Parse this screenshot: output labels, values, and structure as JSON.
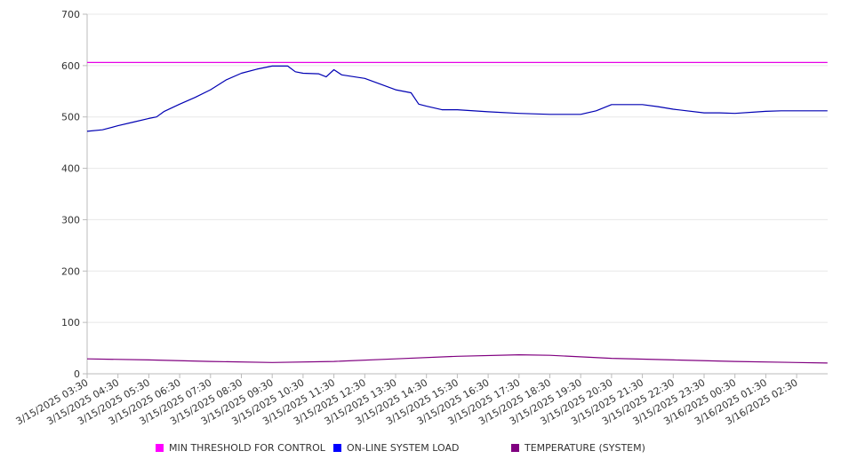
{
  "chart_data": {
    "type": "line",
    "ylim": [
      0,
      700
    ],
    "yticks": [
      "0",
      "100",
      "200",
      "300",
      "400",
      "500",
      "600",
      "700"
    ],
    "grid": true,
    "legend_position": "bottom",
    "x_labels": [
      "3/15/2025 03:30",
      "3/15/2025 04:30",
      "3/15/2025 05:30",
      "3/15/2025 06:30",
      "3/15/2025 07:30",
      "3/15/2025 08:30",
      "3/15/2025 09:30",
      "3/15/2025 10:30",
      "3/15/2025 11:30",
      "3/15/2025 12:30",
      "3/15/2025 13:30",
      "3/15/2025 14:30",
      "3/15/2025 15:30",
      "3/15/2025 16:30",
      "3/15/2025 17:30",
      "3/15/2025 18:30",
      "3/15/2025 19:30",
      "3/15/2025 20:30",
      "3/15/2025 21:30",
      "3/15/2025 22:30",
      "3/15/2025 23:30",
      "3/16/2025 00:30",
      "3/16/2025 01:30",
      "3/16/2025 02:30"
    ],
    "series": [
      {
        "name": "MIN THRESHOLD FOR CONTROL",
        "color": "#e600e6",
        "swatch": "#ff00ff",
        "x": [
          "3/15/2025 03:30",
          "3/16/2025 03:30"
        ],
        "values": [
          606,
          606
        ]
      },
      {
        "name": "ON-LINE SYSTEM LOAD",
        "color": "#0000b3",
        "swatch": "#0000ff",
        "x": [
          "3/15/2025 03:30",
          "3/15/2025 04:00",
          "3/15/2025 04:30",
          "3/15/2025 05:00",
          "3/15/2025 05:30",
          "3/15/2025 05:45",
          "3/15/2025 06:00",
          "3/15/2025 06:30",
          "3/15/2025 07:00",
          "3/15/2025 07:30",
          "3/15/2025 08:00",
          "3/15/2025 08:30",
          "3/15/2025 09:00",
          "3/15/2025 09:30",
          "3/15/2025 10:00",
          "3/15/2025 10:15",
          "3/15/2025 10:30",
          "3/15/2025 11:00",
          "3/15/2025 11:15",
          "3/15/2025 11:30",
          "3/15/2025 11:45",
          "3/15/2025 12:30",
          "3/15/2025 13:00",
          "3/15/2025 13:30",
          "3/15/2025 14:00",
          "3/15/2025 14:15",
          "3/15/2025 14:30",
          "3/15/2025 15:00",
          "3/15/2025 15:30",
          "3/15/2025 16:30",
          "3/15/2025 17:30",
          "3/15/2025 18:30",
          "3/15/2025 19:00",
          "3/15/2025 19:30",
          "3/15/2025 20:00",
          "3/15/2025 20:30",
          "3/15/2025 21:30",
          "3/15/2025 22:00",
          "3/15/2025 22:30",
          "3/15/2025 23:30",
          "3/16/2025 00:00",
          "3/16/2025 00:30",
          "3/16/2025 01:30",
          "3/16/2025 02:00",
          "3/16/2025 02:30",
          "3/16/2025 03:30"
        ],
        "values": [
          472,
          475,
          483,
          490,
          497,
          500,
          511,
          525,
          538,
          553,
          572,
          585,
          593,
          599,
          599,
          588,
          585,
          584,
          578,
          592,
          582,
          575,
          564,
          553,
          547,
          525,
          521,
          514,
          514,
          510,
          507,
          505,
          505,
          505,
          512,
          524,
          524,
          520,
          515,
          508,
          508,
          507,
          511,
          512,
          512,
          512
        ]
      },
      {
        "name": "TEMPERATURE (SYSTEM)",
        "color": "#800080",
        "swatch": "#800080",
        "x": [
          "3/15/2025 03:30",
          "3/15/2025 05:30",
          "3/15/2025 07:30",
          "3/15/2025 09:30",
          "3/15/2025 11:30",
          "3/15/2025 13:30",
          "3/15/2025 15:30",
          "3/15/2025 17:30",
          "3/15/2025 18:30",
          "3/15/2025 20:30",
          "3/15/2025 22:30",
          "3/16/2025 00:30",
          "3/16/2025 02:30",
          "3/16/2025 03:30"
        ],
        "values": [
          29,
          27,
          24,
          22,
          24,
          29,
          34,
          37,
          36,
          30,
          27,
          24,
          22,
          21
        ]
      }
    ]
  }
}
